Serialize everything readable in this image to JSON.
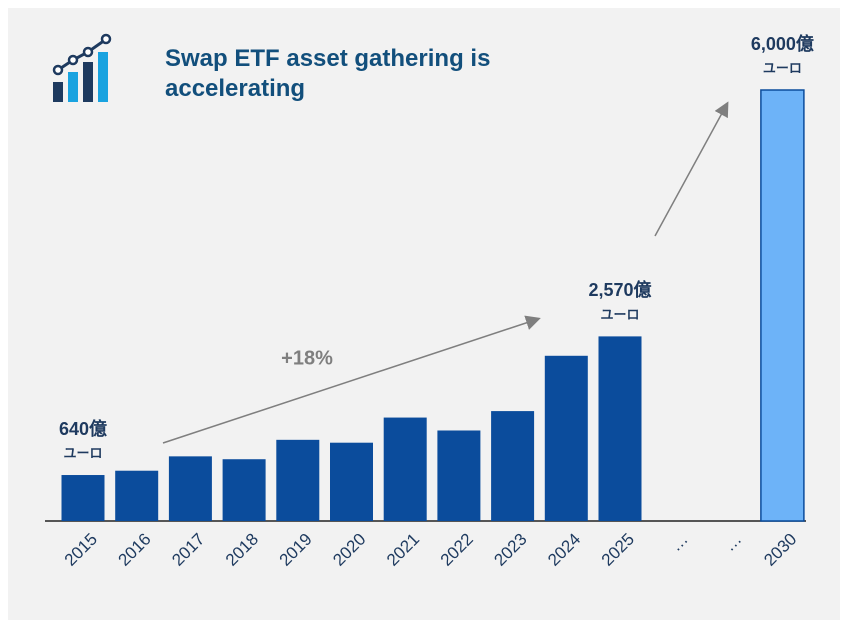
{
  "chart_data": {
    "type": "bar",
    "title": "Swap ETF asset gathering is accelerating",
    "annotation": "+18%",
    "categories": [
      "2015",
      "2016",
      "2017",
      "2018",
      "2019",
      "2020",
      "2021",
      "2022",
      "2023",
      "2024",
      "2025",
      "…",
      "…",
      "2030"
    ],
    "values": [
      640,
      700,
      900,
      860,
      1130,
      1090,
      1440,
      1260,
      1530,
      2300,
      2570,
      null,
      null,
      6000
    ],
    "value_labels": [
      [
        "640億",
        "ユーロ"
      ],
      null,
      null,
      null,
      null,
      null,
      null,
      null,
      null,
      null,
      [
        "2,570億",
        "ユーロ"
      ],
      null,
      null,
      [
        "6,000億",
        "ユーロ"
      ]
    ],
    "colors": [
      "#0b4c9c",
      "#0b4c9c",
      "#0b4c9c",
      "#0b4c9c",
      "#0b4c9c",
      "#0b4c9c",
      "#0b4c9c",
      "#0b4c9c",
      "#0b4c9c",
      "#0b4c9c",
      "#0b4c9c",
      null,
      null,
      "#6db3f8"
    ]
  }
}
